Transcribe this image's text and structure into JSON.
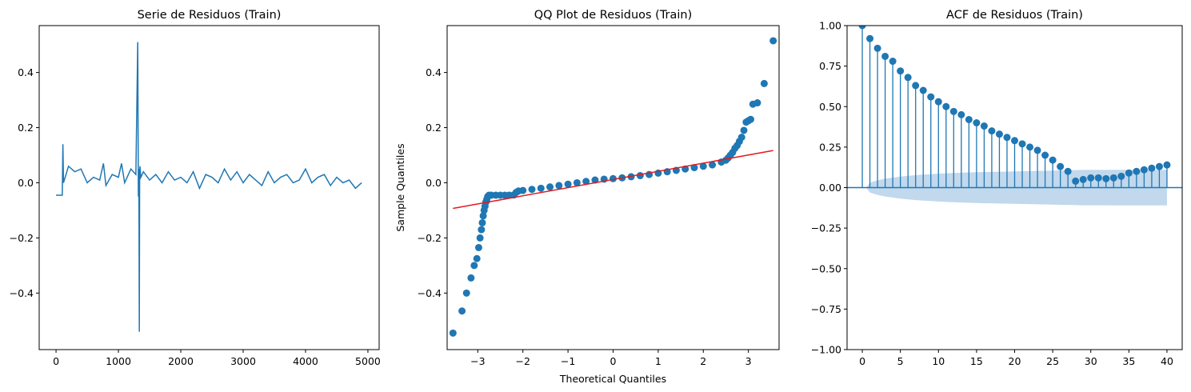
{
  "colors": {
    "series": "#1f77b4",
    "fit_line": "#e41a1c",
    "confidence_band": "#a6c8e6"
  },
  "chart_data": [
    {
      "type": "line",
      "title": "Serie de Residuos (Train)",
      "xlabel": "",
      "ylabel": "",
      "xlim": [
        -270,
        5180
      ],
      "ylim": [
        -0.605,
        0.57
      ],
      "xticks": [
        0,
        1000,
        2000,
        3000,
        4000,
        5000
      ],
      "xtick_labels": [
        "0",
        "1000",
        "2000",
        "3000",
        "4000",
        "5000"
      ],
      "yticks": [
        -0.4,
        -0.2,
        0.0,
        0.2,
        0.4
      ],
      "ytick_labels": [
        "−0.4",
        "−0.2",
        "0.0",
        "0.2",
        "0.4"
      ],
      "x": [
        0,
        100,
        110,
        120,
        200,
        300,
        400,
        500,
        600,
        700,
        760,
        800,
        900,
        1000,
        1050,
        1100,
        1200,
        1280,
        1310,
        1315,
        1320,
        1325,
        1330,
        1335,
        1340,
        1345,
        1360,
        1400,
        1500,
        1600,
        1700,
        1800,
        1900,
        2000,
        2100,
        2200,
        2300,
        2400,
        2500,
        2600,
        2700,
        2800,
        2900,
        3000,
        3100,
        3200,
        3300,
        3400,
        3500,
        3600,
        3700,
        3800,
        3900,
        4000,
        4100,
        4200,
        4300,
        4400,
        4500,
        4600,
        4700,
        4800,
        4900
      ],
      "y": [
        -0.045,
        -0.045,
        0.14,
        0.0,
        0.06,
        0.04,
        0.05,
        0.0,
        0.02,
        0.01,
        0.07,
        -0.01,
        0.03,
        0.02,
        0.07,
        0.0,
        0.05,
        0.03,
        0.51,
        0.23,
        -0.05,
        0.05,
        -0.1,
        -0.54,
        0.0,
        0.06,
        0.02,
        0.04,
        0.01,
        0.03,
        0.0,
        0.04,
        0.01,
        0.02,
        0.0,
        0.04,
        -0.02,
        0.03,
        0.02,
        0.0,
        0.05,
        0.01,
        0.04,
        0.0,
        0.03,
        0.01,
        -0.01,
        0.04,
        0.0,
        0.02,
        0.03,
        0.0,
        0.01,
        0.05,
        0.0,
        0.02,
        0.03,
        -0.01,
        0.02,
        0.0,
        0.01,
        -0.02,
        0.0
      ]
    },
    {
      "type": "scatter",
      "title": "QQ Plot de Residuos (Train)",
      "xlabel": "Theoretical Quantiles",
      "ylabel": "Sample Quantiles",
      "xlim": [
        -3.68,
        3.68
      ],
      "ylim": [
        -0.605,
        0.57
      ],
      "xticks": [
        -3,
        -2,
        -1,
        0,
        1,
        2,
        3
      ],
      "xtick_labels": [
        "−3",
        "−2",
        "−1",
        "0",
        "1",
        "2",
        "3"
      ],
      "yticks": [
        -0.4,
        -0.2,
        0.0,
        0.2,
        0.4
      ],
      "ytick_labels": [
        "−0.4",
        "−0.2",
        "0.0",
        "0.2",
        "0.4"
      ],
      "points_x": [
        -3.55,
        -3.35,
        -3.25,
        -3.15,
        -3.08,
        -3.02,
        -2.98,
        -2.95,
        -2.92,
        -2.9,
        -2.88,
        -2.86,
        -2.84,
        -2.82,
        -2.8,
        -2.78,
        -2.75,
        -2.7,
        -2.6,
        -2.5,
        -2.4,
        -2.3,
        -2.2,
        -2.15,
        -2.1,
        -2.0,
        -1.8,
        -1.6,
        -1.4,
        -1.2,
        -1.0,
        -0.8,
        -0.6,
        -0.4,
        -0.2,
        0.0,
        0.2,
        0.4,
        0.6,
        0.8,
        1.0,
        1.2,
        1.4,
        1.6,
        1.8,
        2.0,
        2.2,
        2.4,
        2.5,
        2.55,
        2.6,
        2.65,
        2.7,
        2.75,
        2.8,
        2.85,
        2.9,
        2.95,
        3.0,
        3.05,
        3.1,
        3.2,
        3.35,
        3.55
      ],
      "points_y": [
        -0.545,
        -0.465,
        -0.4,
        -0.345,
        -0.3,
        -0.275,
        -0.235,
        -0.2,
        -0.17,
        -0.145,
        -0.12,
        -0.1,
        -0.085,
        -0.07,
        -0.06,
        -0.05,
        -0.045,
        -0.045,
        -0.045,
        -0.045,
        -0.045,
        -0.045,
        -0.044,
        -0.035,
        -0.03,
        -0.028,
        -0.024,
        -0.02,
        -0.015,
        -0.01,
        -0.005,
        0.0,
        0.005,
        0.01,
        0.013,
        0.015,
        0.018,
        0.022,
        0.026,
        0.03,
        0.035,
        0.04,
        0.045,
        0.05,
        0.055,
        0.06,
        0.065,
        0.075,
        0.082,
        0.09,
        0.1,
        0.11,
        0.125,
        0.135,
        0.15,
        0.165,
        0.19,
        0.22,
        0.225,
        0.23,
        0.285,
        0.29,
        0.36,
        0.515
      ],
      "fit_line": {
        "x": [
          -3.55,
          3.55
        ],
        "y": [
          -0.093,
          0.117
        ]
      }
    },
    {
      "type": "bar",
      "title": "ACF de Residuos (Train)",
      "xlabel": "",
      "ylabel": "",
      "xlim": [
        -2.0,
        42.0
      ],
      "ylim": [
        -1.0,
        1.0
      ],
      "xticks": [
        0,
        5,
        10,
        15,
        20,
        25,
        30,
        35,
        40
      ],
      "xtick_labels": [
        "0",
        "5",
        "10",
        "15",
        "20",
        "25",
        "30",
        "35",
        "40"
      ],
      "yticks": [
        -1.0,
        -0.75,
        -0.5,
        -0.25,
        0.0,
        0.25,
        0.5,
        0.75,
        1.0
      ],
      "ytick_labels": [
        "−1.00",
        "−0.75",
        "−0.50",
        "−0.25",
        "0.00",
        "0.25",
        "0.50",
        "0.75",
        "1.00"
      ],
      "lags": [
        0,
        1,
        2,
        3,
        4,
        5,
        6,
        7,
        8,
        9,
        10,
        11,
        12,
        13,
        14,
        15,
        16,
        17,
        18,
        19,
        20,
        21,
        22,
        23,
        24,
        25,
        26,
        27,
        28,
        29,
        30,
        31,
        32,
        33,
        34,
        35,
        36,
        37,
        38,
        39,
        40
      ],
      "values": [
        1.0,
        0.92,
        0.86,
        0.81,
        0.78,
        0.72,
        0.68,
        0.63,
        0.6,
        0.56,
        0.53,
        0.5,
        0.47,
        0.45,
        0.42,
        0.4,
        0.38,
        0.35,
        0.33,
        0.31,
        0.29,
        0.27,
        0.25,
        0.23,
        0.2,
        0.17,
        0.13,
        0.1,
        0.04,
        0.05,
        0.06,
        0.06,
        0.055,
        0.06,
        0.07,
        0.09,
        0.1,
        0.11,
        0.12,
        0.13,
        0.14
      ],
      "confint": [
        0.0,
        0.03,
        0.045,
        0.055,
        0.062,
        0.068,
        0.073,
        0.077,
        0.08,
        0.083,
        0.086,
        0.088,
        0.09,
        0.092,
        0.094,
        0.095,
        0.096,
        0.097,
        0.098,
        0.099,
        0.1,
        0.101,
        0.102,
        0.103,
        0.104,
        0.105,
        0.106,
        0.107,
        0.108,
        0.109,
        0.109,
        0.109,
        0.109,
        0.11,
        0.11,
        0.11,
        0.11,
        0.11,
        0.11,
        0.11,
        0.11
      ]
    }
  ]
}
